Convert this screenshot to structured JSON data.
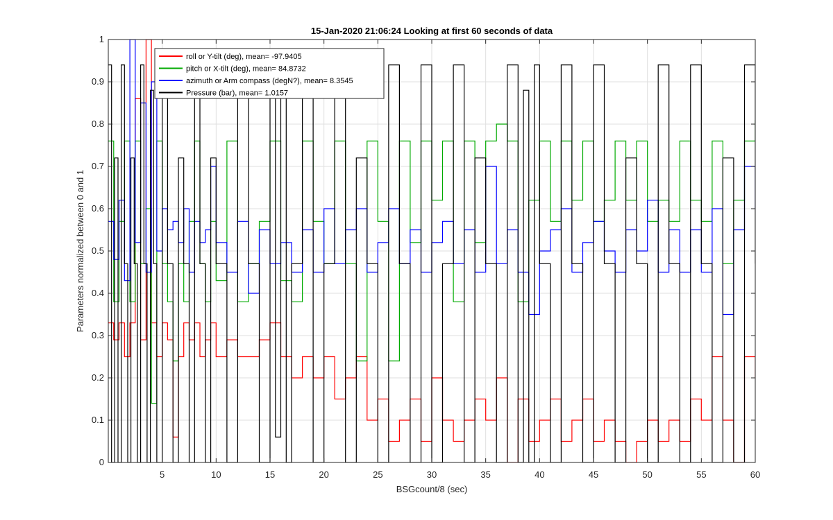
{
  "chart_data": {
    "type": "line",
    "title": "15-Jan-2020 21:06:24 Looking at first 60 seconds of data",
    "xlabel": "BSGcount/8 (sec)",
    "ylabel": "Parameters normalized between 0 and 1",
    "xlim": [
      0,
      60
    ],
    "ylim": [
      0,
      1
    ],
    "xticks": [
      5,
      10,
      15,
      20,
      25,
      30,
      35,
      40,
      45,
      50,
      55,
      60
    ],
    "yticks": [
      0,
      0.1,
      0.2,
      0.3,
      0.4,
      0.5,
      0.6,
      0.7,
      0.8,
      0.9,
      1
    ],
    "grid": true,
    "legend_position": "top-left",
    "colors": {
      "axes": "#262626",
      "grid": "#dfdfdf",
      "background": "#ffffff"
    },
    "series": [
      {
        "name": "roll or Y-tilt (deg), mean= -97.9405",
        "color": "#ff0000",
        "x": [
          0,
          0.5,
          1,
          1.5,
          2,
          2.5,
          3,
          3.5,
          4,
          4.5,
          5,
          5.5,
          6,
          6.5,
          7,
          7.5,
          8,
          8.5,
          9,
          9.5,
          10,
          11,
          12,
          13,
          14,
          15,
          16,
          17,
          18,
          19,
          20,
          21,
          22,
          23,
          24,
          25,
          26,
          27,
          28,
          29,
          30,
          31,
          32,
          33,
          34,
          35,
          36,
          37,
          38,
          39,
          40,
          41,
          42,
          43,
          44,
          45,
          46,
          47,
          48,
          49,
          50,
          51,
          52,
          53,
          54,
          55,
          56,
          57,
          58,
          59,
          60
        ],
        "y": [
          0.33,
          0.29,
          0.33,
          0.25,
          0.33,
          0.86,
          0.29,
          1.0,
          0.33,
          0.25,
          0.33,
          0.29,
          0.06,
          0.25,
          0.33,
          0.29,
          0.33,
          0.25,
          0.29,
          0.33,
          0.25,
          0.29,
          0.25,
          0.25,
          0.29,
          0.33,
          0.25,
          0.2,
          0.25,
          0.2,
          0.25,
          0.15,
          0.2,
          0.25,
          0.1,
          0.15,
          0.05,
          0.1,
          0.15,
          0.05,
          0.2,
          0.1,
          0.05,
          0.1,
          0.15,
          0.1,
          0.2,
          0.0,
          0.15,
          0.05,
          0.1,
          0.15,
          0.05,
          0.1,
          0.15,
          0.05,
          0.1,
          0.05,
          0.0,
          0.05,
          0.1,
          0.05,
          0.1,
          0.05,
          0.15,
          0.1,
          0.25,
          0.1,
          0.0,
          0.25,
          0.2
        ]
      },
      {
        "name": "pitch or X-tilt (deg), mean= 84.8732",
        "color": "#00aa00",
        "x": [
          0,
          0.5,
          1,
          1.5,
          2,
          2.5,
          3,
          3.5,
          4,
          4.5,
          5,
          5.5,
          6,
          6.5,
          7,
          7.5,
          8,
          8.5,
          9,
          9.5,
          10,
          11,
          12,
          13,
          14,
          15,
          16,
          17,
          18,
          19,
          20,
          21,
          22,
          23,
          24,
          25,
          26,
          27,
          28,
          29,
          30,
          31,
          32,
          33,
          34,
          35,
          36,
          37,
          38,
          39,
          40,
          41,
          42,
          43,
          44,
          45,
          46,
          47,
          48,
          49,
          50,
          51,
          52,
          53,
          54,
          55,
          56,
          57,
          58,
          59,
          60
        ],
        "y": [
          0.76,
          0.38,
          0.57,
          0.76,
          0.38,
          0.76,
          0.47,
          0.6,
          0.14,
          0.76,
          0.47,
          0.38,
          0.24,
          0.47,
          0.38,
          0.57,
          0.76,
          0.47,
          0.38,
          0.57,
          0.43,
          0.76,
          0.38,
          0.47,
          0.57,
          0.76,
          0.43,
          0.38,
          0.76,
          0.57,
          0.47,
          0.76,
          0.47,
          0.24,
          0.76,
          0.57,
          0.24,
          0.76,
          0.52,
          0.76,
          0.62,
          0.76,
          0.38,
          0.76,
          0.52,
          0.76,
          0.8,
          0.76,
          0.38,
          0.62,
          0.76,
          0.57,
          0.76,
          0.62,
          0.76,
          0.57,
          0.62,
          0.76,
          0.62,
          0.76,
          0.57,
          0.62,
          0.57,
          0.76,
          0.62,
          0.57,
          0.76,
          0.47,
          0.62,
          0.76,
          0.81
        ]
      },
      {
        "name": "azimuth or Arm compass (degN?), mean= 8.3545",
        "color": "#0000ff",
        "x": [
          0,
          0.5,
          1,
          1.5,
          2,
          2.5,
          3,
          3.5,
          4,
          4.5,
          5,
          5.5,
          6,
          6.5,
          7,
          7.5,
          8,
          8.5,
          9,
          9.5,
          10,
          11,
          12,
          13,
          14,
          15,
          16,
          17,
          18,
          19,
          20,
          21,
          22,
          23,
          24,
          25,
          26,
          27,
          28,
          29,
          30,
          31,
          32,
          33,
          34,
          35,
          36,
          37,
          38,
          39,
          40,
          41,
          42,
          43,
          44,
          45,
          46,
          47,
          48,
          49,
          50,
          51,
          52,
          53,
          54,
          55,
          56,
          57,
          58,
          59,
          60
        ],
        "y": [
          0.57,
          0.48,
          0.62,
          0.43,
          1.0,
          0.52,
          0.85,
          0.45,
          0.9,
          0.5,
          0.6,
          0.55,
          0.57,
          0.52,
          0.6,
          0.45,
          0.57,
          0.52,
          0.55,
          0.7,
          0.52,
          0.45,
          0.57,
          0.4,
          0.55,
          0.47,
          0.52,
          0.45,
          0.55,
          0.45,
          0.6,
          0.47,
          0.55,
          0.6,
          0.45,
          0.52,
          0.6,
          0.47,
          0.55,
          0.45,
          0.52,
          0.57,
          0.47,
          0.55,
          0.45,
          0.7,
          0.47,
          0.55,
          0.45,
          0.35,
          0.5,
          0.55,
          0.6,
          0.45,
          0.52,
          0.57,
          0.5,
          0.45,
          0.55,
          0.5,
          0.62,
          0.45,
          0.55,
          0.45,
          0.55,
          0.45,
          0.6,
          0.35,
          0.55,
          0.7,
          0.6
        ]
      },
      {
        "name": "Pressure (bar), mean= 1.0157",
        "color": "#000000",
        "x": [
          0,
          0.3,
          0.6,
          0.9,
          1.2,
          1.5,
          1.8,
          2.1,
          2.4,
          2.7,
          3.0,
          3.3,
          3.6,
          3.9,
          4.2,
          4.5,
          5,
          5.5,
          6,
          6.5,
          7,
          7.5,
          8,
          8.5,
          9,
          9.5,
          10,
          11,
          12,
          13,
          14,
          15,
          15.5,
          16,
          16.5,
          17,
          18,
          19,
          20,
          21,
          22,
          23,
          24,
          25,
          26,
          27,
          28,
          29,
          30,
          31,
          32,
          33,
          34,
          35,
          36,
          37,
          38,
          38.5,
          39,
          39.5,
          40,
          41,
          42,
          43,
          44,
          45,
          46,
          47,
          48,
          49,
          50,
          51,
          52,
          53,
          54,
          55,
          56,
          57,
          58,
          59,
          60
        ],
        "y": [
          0.94,
          0.0,
          0.72,
          0.0,
          0.94,
          0.47,
          0.0,
          0.72,
          0.47,
          0.0,
          0.94,
          0.47,
          0.0,
          0.88,
          0.47,
          0.0,
          0.94,
          0.47,
          0.0,
          0.72,
          0.47,
          0.0,
          0.94,
          0.47,
          0.0,
          0.72,
          0.47,
          0.0,
          0.94,
          0.47,
          0.0,
          0.94,
          0.06,
          0.88,
          0.0,
          0.47,
          0.94,
          0.0,
          0.47,
          0.94,
          0.0,
          0.72,
          0.47,
          0.0,
          0.94,
          0.47,
          0.0,
          0.94,
          0.0,
          0.47,
          0.94,
          0.0,
          0.72,
          0.47,
          0.0,
          0.94,
          0.0,
          0.88,
          0.0,
          0.94,
          0.47,
          0.0,
          0.94,
          0.47,
          0.0,
          0.94,
          0.47,
          0.0,
          0.72,
          0.47,
          0.0,
          0.94,
          0.47,
          0.0,
          0.94,
          0.47,
          0.0,
          0.72,
          0.0,
          0.94,
          0.47
        ]
      }
    ]
  }
}
